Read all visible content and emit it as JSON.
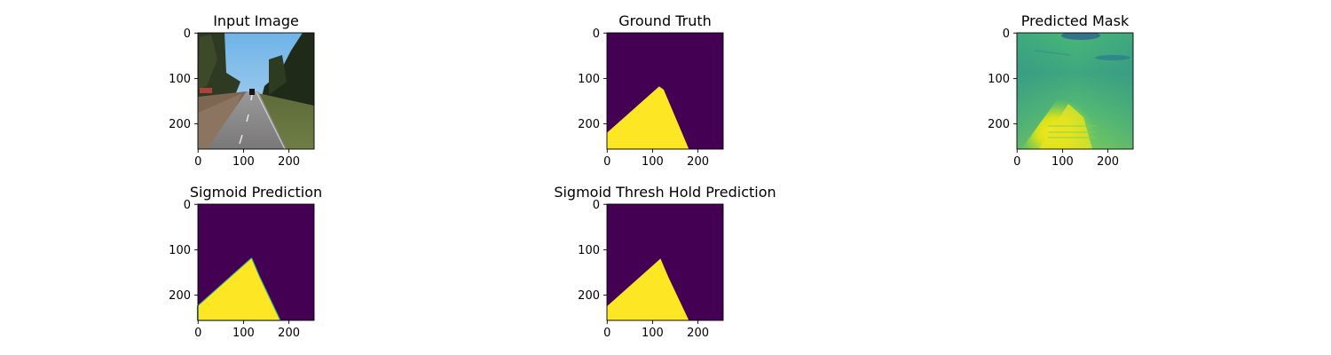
{
  "figure": {
    "background": "#ffffff",
    "colormap": "viridis",
    "colors": {
      "viridis_purple": "#440154",
      "viridis_yellow": "#fde725",
      "axis": "#000000"
    }
  },
  "chart_data": [
    {
      "type": "image",
      "title": "Input Image",
      "content": "road-scene-photo",
      "xlim": [
        0,
        255
      ],
      "ylim": [
        255,
        0
      ],
      "xticks": [
        0,
        100,
        200
      ],
      "yticks": [
        0,
        100,
        200
      ],
      "grid": false
    },
    {
      "type": "heatmap",
      "title": "Ground Truth",
      "content": "binary-mask",
      "xlim": [
        0,
        255
      ],
      "ylim": [
        255,
        0
      ],
      "xticks": [
        0,
        100,
        200
      ],
      "yticks": [
        0,
        100,
        200
      ],
      "road_polygon": [
        [
          0,
          220
        ],
        [
          115,
          118
        ],
        [
          125,
          125
        ],
        [
          180,
          255
        ],
        [
          0,
          255
        ]
      ],
      "grid": false
    },
    {
      "type": "heatmap",
      "title": "Predicted Mask",
      "content": "continuous-logits",
      "xlim": [
        0,
        255
      ],
      "ylim": [
        255,
        0
      ],
      "xticks": [
        0,
        100,
        200
      ],
      "yticks": [
        0,
        100,
        200
      ],
      "grid": false
    },
    {
      "type": "heatmap",
      "title": "Sigmoid Prediction",
      "content": "sigmoid-probabilities",
      "xlim": [
        0,
        255
      ],
      "ylim": [
        255,
        0
      ],
      "xticks": [
        0,
        100,
        200
      ],
      "yticks": [
        0,
        100,
        200
      ],
      "road_polygon": [
        [
          0,
          225
        ],
        [
          118,
          120
        ],
        [
          135,
          160
        ],
        [
          180,
          255
        ],
        [
          0,
          255
        ]
      ],
      "grid": false
    },
    {
      "type": "heatmap",
      "title": "Sigmoid  Thresh Hold Prediction",
      "content": "thresholded-mask",
      "xlim": [
        0,
        255
      ],
      "ylim": [
        255,
        0
      ],
      "xticks": [
        0,
        100,
        200
      ],
      "yticks": [
        0,
        100,
        200
      ],
      "road_polygon": [
        [
          0,
          225
        ],
        [
          118,
          120
        ],
        [
          135,
          160
        ],
        [
          180,
          255
        ],
        [
          0,
          255
        ]
      ],
      "grid": false
    }
  ]
}
